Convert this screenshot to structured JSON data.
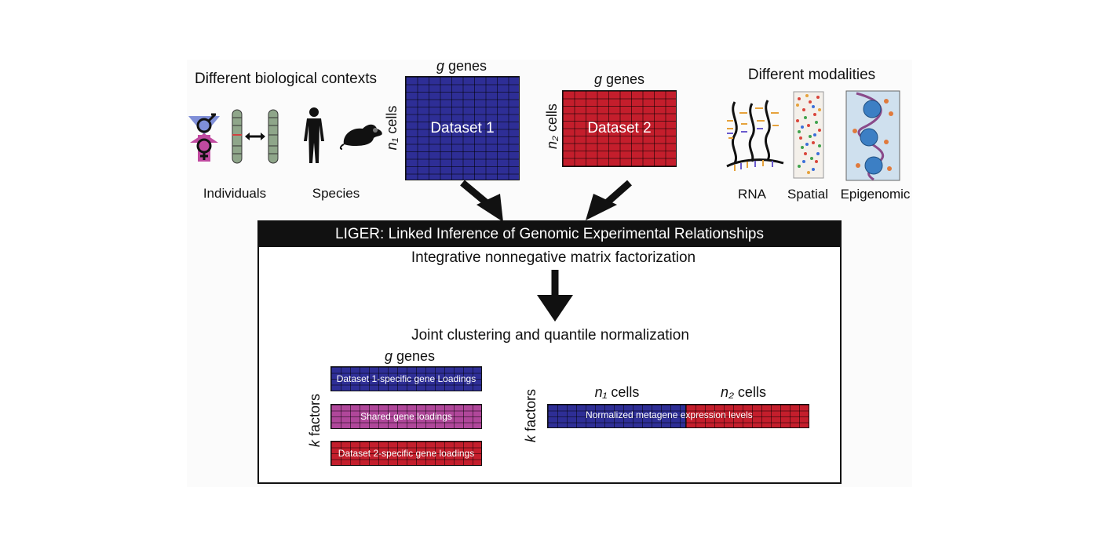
{
  "top": {
    "biological_contexts_label": "Different biological contexts",
    "individuals_label": "Individuals",
    "species_label": "Species",
    "modalities_label": "Different modalities",
    "rna_label": "RNA",
    "spatial_label": "Spatial",
    "epigenomic_label": "Epigenomic"
  },
  "dataset1": {
    "genes_var": "g",
    "genes_label": " genes",
    "cells_var": "n₁",
    "cells_label": " cells",
    "title": "Dataset 1",
    "color": "#2e2e96"
  },
  "dataset2": {
    "genes_var": "g",
    "genes_label": " genes",
    "cells_var": "n₂",
    "cells_label": " cells",
    "title": "Dataset 2",
    "color": "#c41e2c"
  },
  "liger": {
    "title": "LIGER: Linked Inference of Genomic Experimental Relationships",
    "step1": "Integrative nonnegative matrix factorization",
    "step2": "Joint clustering and quantile normalization",
    "genes_var": "g",
    "genes_label": " genes",
    "factors_var": "k",
    "factors_label": " factors",
    "loading1": "Dataset 1-specific gene Loadings",
    "loading_shared": "Shared gene loadings",
    "loading2": "Dataset 2-specific gene loadings",
    "n1_var": "n₁",
    "n2_var": "n₂",
    "cells_label": " cells",
    "metagene_label": "Normalized metagene expression levels"
  },
  "colors": {
    "dataset1": "#2e2e96",
    "dataset2": "#c41e2c",
    "shared": "#b0479a",
    "header": "#111111"
  },
  "icons": [
    "sex-symbols-icon",
    "chromosome-pair-icon",
    "human-silhouette-icon",
    "mouse-silhouette-icon",
    "rna-strands-icon",
    "spatial-tissue-icon",
    "chromatin-icon",
    "down-arrow-icon"
  ]
}
